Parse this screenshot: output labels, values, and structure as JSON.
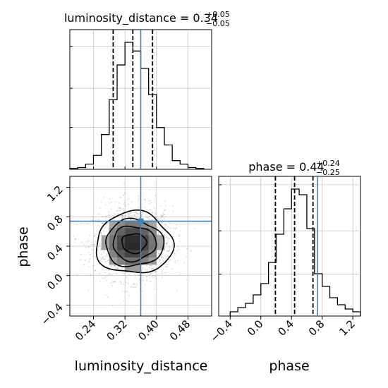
{
  "chart_data": [
    {
      "panel": "luminosity_distance-marginal",
      "type": "histogram",
      "title": {
        "prefix": "luminosity_distance = 0.34",
        "sup": "+0.05",
        "sub": "−0.05"
      },
      "xlim": [
        0.18,
        0.54
      ],
      "bin_width": 0.02,
      "bins": [
        {
          "x0": 0.18,
          "x1": 0.2,
          "height": 0.005
        },
        {
          "x0": 0.2,
          "x1": 0.22,
          "height": 0.01
        },
        {
          "x0": 0.22,
          "x1": 0.24,
          "height": 0.03
        },
        {
          "x0": 0.24,
          "x1": 0.26,
          "height": 0.08
        },
        {
          "x0": 0.26,
          "x1": 0.28,
          "height": 0.2
        },
        {
          "x0": 0.28,
          "x1": 0.3,
          "height": 0.4
        },
        {
          "x0": 0.3,
          "x1": 0.32,
          "height": 0.6
        },
        {
          "x0": 0.32,
          "x1": 0.34,
          "height": 0.73
        },
        {
          "x0": 0.34,
          "x1": 0.36,
          "height": 0.68
        },
        {
          "x0": 0.36,
          "x1": 0.38,
          "height": 0.58
        },
        {
          "x0": 0.38,
          "x1": 0.4,
          "height": 0.43
        },
        {
          "x0": 0.4,
          "x1": 0.42,
          "height": 0.24
        },
        {
          "x0": 0.42,
          "x1": 0.44,
          "height": 0.14
        },
        {
          "x0": 0.44,
          "x1": 0.46,
          "height": 0.05
        },
        {
          "x0": 0.46,
          "x1": 0.48,
          "height": 0.03
        },
        {
          "x0": 0.48,
          "x1": 0.5,
          "height": 0.01
        },
        {
          "x0": 0.5,
          "x1": 0.52,
          "height": 0.005
        }
      ],
      "quantiles": [
        0.29,
        0.34,
        0.39
      ],
      "truth": 0.36,
      "grid": true
    },
    {
      "panel": "phase-marginal",
      "type": "histogram",
      "title": {
        "prefix": "phase = 0.44",
        "sup": "+0.24",
        "sub": "−0.25"
      },
      "xlim": [
        -0.55,
        1.3
      ],
      "xticks": [
        "−0.4",
        "0.0",
        "0.4",
        "0.8",
        "1.2"
      ],
      "xtick_values": [
        -0.4,
        0.0,
        0.4,
        0.8,
        1.2
      ],
      "xlabel": "phase",
      "bin_width": 0.1,
      "bins": [
        {
          "x0": -0.4,
          "x1": -0.3,
          "height": 0.03
        },
        {
          "x0": -0.3,
          "x1": -0.2,
          "height": 0.06
        },
        {
          "x0": -0.2,
          "x1": -0.1,
          "height": 0.09
        },
        {
          "x0": -0.1,
          "x1": 0.0,
          "height": 0.15
        },
        {
          "x0": 0.0,
          "x1": 0.1,
          "height": 0.23
        },
        {
          "x0": 0.1,
          "x1": 0.2,
          "height": 0.38
        },
        {
          "x0": 0.2,
          "x1": 0.3,
          "height": 0.58
        },
        {
          "x0": 0.3,
          "x1": 0.4,
          "height": 0.76
        },
        {
          "x0": 0.4,
          "x1": 0.5,
          "height": 0.9
        },
        {
          "x0": 0.5,
          "x1": 0.6,
          "height": 0.86
        },
        {
          "x0": 0.6,
          "x1": 0.7,
          "height": 0.62
        },
        {
          "x0": 0.7,
          "x1": 0.8,
          "height": 0.3
        },
        {
          "x0": 0.8,
          "x1": 0.9,
          "height": 0.21
        },
        {
          "x0": 0.9,
          "x1": 1.0,
          "height": 0.13
        },
        {
          "x0": 1.0,
          "x1": 1.1,
          "height": 0.08
        },
        {
          "x0": 1.1,
          "x1": 1.2,
          "height": 0.05
        },
        {
          "x0": 1.2,
          "x1": 1.3,
          "height": 0.03
        }
      ],
      "quantiles": [
        0.19,
        0.44,
        0.68
      ],
      "truth": 0.74,
      "grid": true
    },
    {
      "panel": "joint-2d",
      "type": "scatter",
      "xlim": [
        0.18,
        0.54
      ],
      "ylim": [
        -0.55,
        1.35
      ],
      "xticks": [
        "0.24",
        "0.32",
        "0.40",
        "0.48"
      ],
      "xtick_values": [
        0.24,
        0.32,
        0.4,
        0.48
      ],
      "yticks": [
        "−0.4",
        "0.0",
        "0.4",
        "0.8",
        "1.2"
      ],
      "ytick_values": [
        -0.4,
        0.0,
        0.4,
        0.8,
        1.2
      ],
      "xlabel": "luminosity_distance",
      "ylabel": "phase",
      "density_center": [
        0.34,
        0.44
      ],
      "density_spread": [
        0.05,
        0.25
      ],
      "contour_levels": [
        0.39,
        0.86,
        0.99,
        1.0
      ],
      "truth": [
        0.36,
        0.74
      ],
      "grid": true
    }
  ],
  "colors": {
    "truth": "#4682b4",
    "hist": "#000000",
    "grid": "#b0b0b0",
    "points": "#888888"
  }
}
